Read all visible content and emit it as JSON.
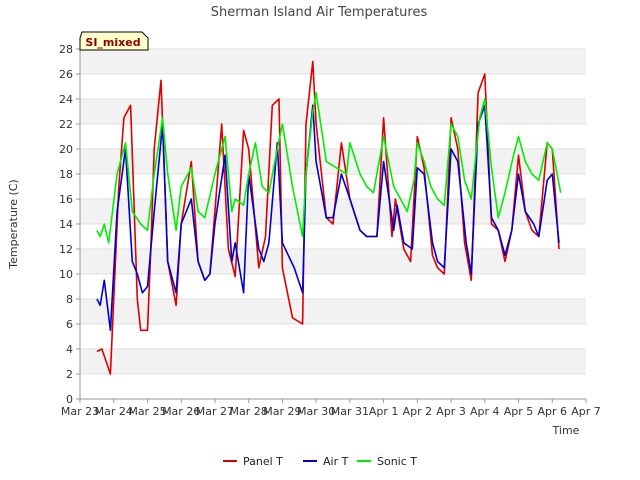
{
  "chart_data": {
    "type": "line",
    "title": "Sherman Island Air Temperatures",
    "xlabel": "Time",
    "ylabel": "Temperature (C)",
    "ylim": [
      0,
      28
    ],
    "yticks": [
      0,
      2,
      4,
      6,
      8,
      10,
      12,
      14,
      16,
      18,
      20,
      22,
      24,
      26,
      28
    ],
    "xlim": [
      0,
      15
    ],
    "xticks": [
      0,
      1,
      2,
      3,
      4,
      5,
      6,
      7,
      8,
      9,
      10,
      11,
      12,
      13,
      14,
      15
    ],
    "xtick_labels": [
      "Mar 23",
      "Mar 24",
      "Mar 25",
      "Mar 26",
      "Mar 27",
      "Mar 28",
      "Mar 29",
      "Mar 30",
      "Mar 31",
      "Apr 1",
      "Apr 2",
      "Apr 3",
      "Apr 4",
      "Apr 5",
      "Apr 6",
      "Apr 7"
    ],
    "x_unit": "days",
    "grid": "horizontal-bands",
    "legend_position": "bottom",
    "annotation": "SI_mixed",
    "series": [
      {
        "name": "Panel T",
        "color": "#dd0000",
        "x": [
          0.5,
          0.65,
          0.9,
          1.15,
          1.3,
          1.5,
          1.7,
          1.8,
          2.0,
          2.1,
          2.2,
          2.4,
          2.6,
          2.85,
          3.0,
          3.3,
          3.5,
          3.7,
          3.85,
          4.0,
          4.2,
          4.4,
          4.6,
          4.85,
          5.0,
          5.3,
          5.5,
          5.7,
          5.9,
          6.0,
          6.3,
          6.6,
          6.7,
          6.9,
          7.0,
          7.3,
          7.5,
          7.75,
          8.0,
          8.3,
          8.5,
          8.8,
          9.0,
          9.25,
          9.35,
          9.6,
          9.8,
          10.0,
          10.2,
          10.45,
          10.6,
          10.8,
          11.0,
          11.2,
          11.4,
          11.6,
          11.8,
          12.0,
          12.2,
          12.4,
          12.6,
          12.8,
          13.0,
          13.2,
          13.4,
          13.6,
          13.85,
          14.0,
          14.2
        ],
        "values": [
          3.8,
          4.0,
          2.0,
          17.0,
          22.5,
          23.5,
          8.0,
          5.5,
          5.5,
          12.0,
          20.0,
          25.5,
          11.0,
          7.5,
          14.0,
          19.0,
          11.0,
          9.5,
          10.0,
          15.0,
          22.0,
          12.0,
          9.8,
          21.5,
          20.0,
          10.5,
          13.0,
          23.5,
          24.0,
          10.5,
          6.5,
          6.0,
          22.0,
          27.0,
          22.0,
          14.5,
          14.0,
          20.5,
          16.0,
          13.5,
          13.0,
          13.0,
          22.5,
          13.0,
          16.0,
          12.0,
          11.0,
          21.0,
          18.5,
          11.5,
          10.5,
          10.0,
          22.5,
          20.0,
          12.5,
          9.5,
          24.5,
          26.0,
          14.0,
          13.5,
          11.0,
          13.5,
          19.5,
          15.0,
          13.5,
          13.0,
          20.5,
          20.0,
          12.0
        ]
      },
      {
        "name": "Air T",
        "color": "#0000cc",
        "x": [
          0.5,
          0.6,
          0.72,
          0.9,
          1.1,
          1.35,
          1.55,
          1.7,
          1.85,
          2.0,
          2.2,
          2.45,
          2.6,
          2.85,
          3.0,
          3.3,
          3.5,
          3.7,
          3.85,
          4.0,
          4.3,
          4.5,
          4.6,
          4.85,
          5.0,
          5.3,
          5.45,
          5.6,
          5.85,
          6.0,
          6.35,
          6.6,
          6.7,
          6.9,
          7.0,
          7.3,
          7.5,
          7.75,
          8.0,
          8.3,
          8.5,
          8.8,
          9.0,
          9.3,
          9.4,
          9.6,
          9.85,
          10.0,
          10.2,
          10.45,
          10.6,
          10.8,
          11.0,
          11.2,
          11.45,
          11.6,
          11.8,
          12.0,
          12.2,
          12.4,
          12.6,
          12.8,
          13.0,
          13.2,
          13.45,
          13.6,
          13.85,
          14.0,
          14.2
        ],
        "values": [
          8.0,
          7.5,
          9.5,
          5.5,
          15.0,
          20.0,
          11.0,
          10.0,
          8.5,
          9.0,
          15.0,
          22.0,
          11.0,
          8.5,
          14.0,
          16.0,
          11.0,
          9.5,
          10.0,
          14.0,
          19.5,
          11.0,
          12.5,
          8.5,
          18.0,
          12.0,
          11.0,
          12.5,
          20.5,
          12.5,
          10.5,
          8.5,
          18.0,
          23.5,
          19.0,
          14.5,
          14.5,
          18.0,
          16.0,
          13.5,
          13.0,
          13.0,
          19.0,
          13.5,
          15.5,
          12.5,
          12.0,
          18.5,
          18.0,
          12.5,
          11.0,
          10.5,
          20.0,
          19.0,
          12.5,
          10.0,
          22.0,
          23.5,
          14.5,
          13.5,
          11.5,
          13.5,
          18.0,
          15.0,
          14.0,
          13.0,
          17.5,
          18.0,
          12.5
        ]
      },
      {
        "name": "Sonic T",
        "color": "#00ee00",
        "x": [
          0.5,
          0.6,
          0.72,
          0.85,
          1.1,
          1.35,
          1.55,
          1.8,
          2.0,
          2.2,
          2.45,
          2.6,
          2.85,
          3.0,
          3.3,
          3.5,
          3.7,
          4.0,
          4.3,
          4.5,
          4.6,
          4.85,
          5.0,
          5.2,
          5.4,
          5.6,
          5.85,
          6.0,
          6.3,
          6.6,
          6.7,
          6.9,
          7.0,
          7.3,
          7.6,
          7.9,
          8.0,
          8.3,
          8.5,
          8.7,
          9.0,
          9.3,
          9.5,
          9.7,
          9.9,
          10.0,
          10.2,
          10.4,
          10.6,
          10.8,
          11.0,
          11.2,
          11.4,
          11.6,
          11.85,
          12.0,
          12.2,
          12.4,
          12.6,
          12.85,
          13.0,
          13.2,
          13.4,
          13.6,
          13.85,
          14.0,
          14.25
        ],
        "values": [
          13.5,
          13.0,
          14.0,
          12.5,
          18.0,
          20.5,
          15.0,
          14.0,
          13.5,
          18.0,
          22.5,
          18.0,
          13.5,
          17.0,
          18.5,
          15.0,
          14.5,
          18.0,
          21.0,
          15.0,
          16.0,
          15.5,
          18.0,
          20.5,
          17.0,
          16.5,
          20.0,
          22.0,
          17.0,
          13.0,
          18.0,
          23.0,
          24.5,
          19.0,
          18.5,
          18.0,
          20.5,
          18.0,
          17.0,
          16.5,
          21.0,
          17.0,
          16.0,
          15.0,
          17.5,
          20.5,
          19.0,
          17.0,
          16.0,
          15.5,
          22.0,
          21.0,
          17.5,
          16.0,
          22.5,
          24.0,
          18.5,
          14.5,
          16.5,
          19.5,
          21.0,
          19.0,
          18.0,
          17.5,
          20.5,
          20.0,
          16.5
        ]
      }
    ]
  }
}
